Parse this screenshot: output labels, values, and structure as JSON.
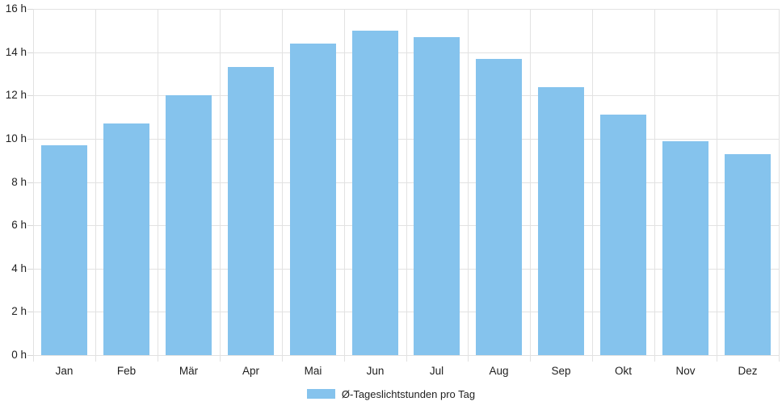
{
  "chart_data": {
    "type": "bar",
    "categories": [
      "Jan",
      "Feb",
      "Mär",
      "Apr",
      "Mai",
      "Jun",
      "Jul",
      "Aug",
      "Sep",
      "Okt",
      "Nov",
      "Dez"
    ],
    "values": [
      9.7,
      10.7,
      12,
      13.3,
      14.4,
      15,
      14.7,
      13.7,
      12.4,
      11.1,
      9.9,
      9.3
    ],
    "title": "",
    "xlabel": "",
    "ylabel": "",
    "ytick_suffix": " h",
    "ylim": [
      0,
      16
    ],
    "ytick_step": 2,
    "grid": true,
    "legend": "Ø-Tageslichtstunden pro Tag",
    "legend_position": "bottom",
    "bar_color": "#85c3ed",
    "grid_color": "#e2e2e2",
    "text_color": "#1f1f1f"
  }
}
